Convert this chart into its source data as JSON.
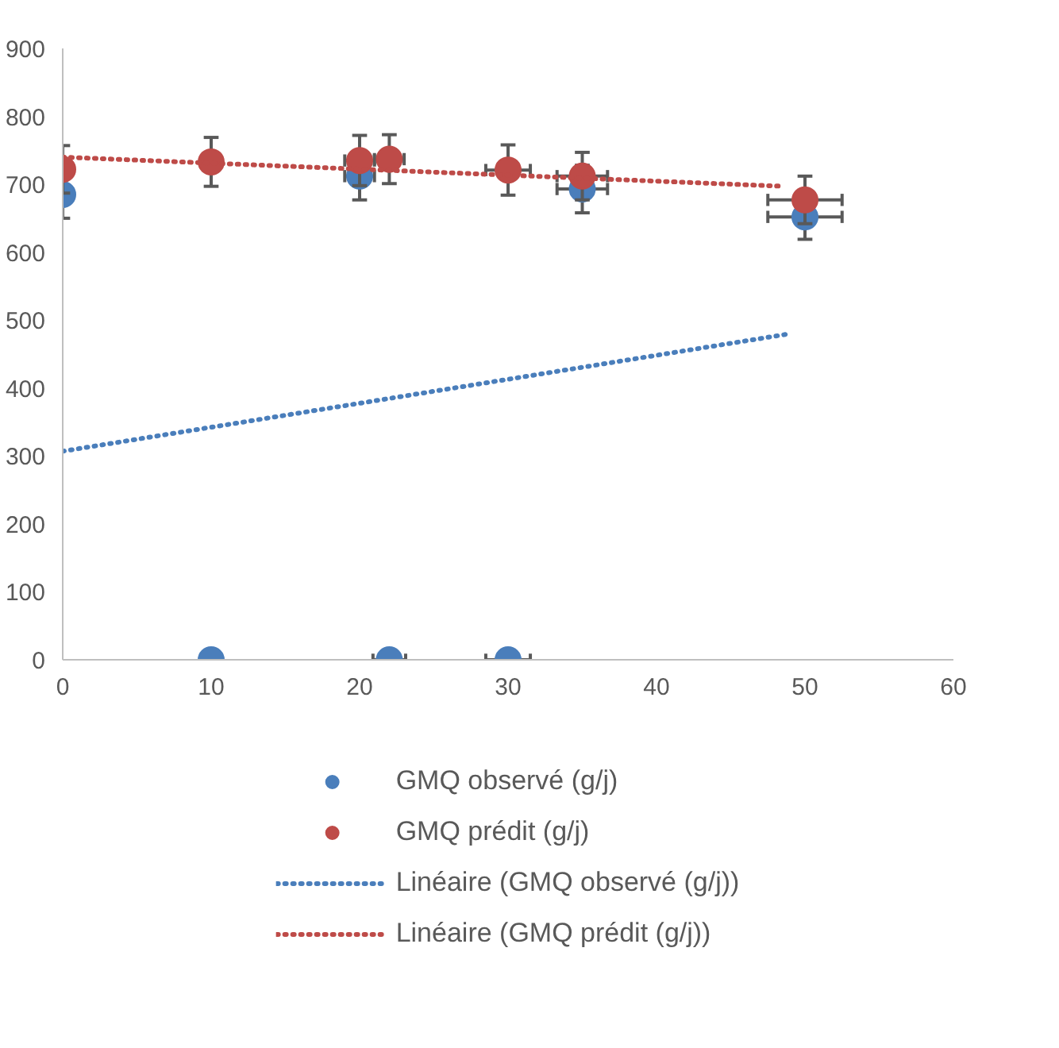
{
  "chart_data": {
    "type": "scatter",
    "xlim": [
      0,
      60
    ],
    "xticks": [
      0,
      10,
      20,
      30,
      40,
      50,
      60
    ],
    "ylim": [
      0,
      900
    ],
    "yticks": [
      0,
      100,
      200,
      300,
      400,
      500,
      600,
      700,
      800,
      900
    ],
    "grid": false,
    "legend": "bottom",
    "marker": "circle",
    "series": [
      {
        "name": "GMQ observé (g/j)",
        "color": "#4a7ebb",
        "x": [
          0,
          10,
          20,
          22,
          30,
          35,
          50
        ],
        "values": [
          685,
          0,
          712,
          0,
          0,
          693,
          652
        ],
        "errors": [
          35,
          null,
          35,
          null,
          null,
          35,
          33
        ],
        "xerrors": [
          null,
          null,
          1,
          1.1,
          1.5,
          1.7,
          2.5
        ]
      },
      {
        "name": "GMQ prédit (g/j)",
        "color": "#be4b48",
        "x": [
          0,
          10,
          20,
          22,
          30,
          35,
          50
        ],
        "values": [
          722,
          733,
          735,
          737,
          721,
          712,
          677
        ],
        "errors": [
          35,
          36,
          37,
          36,
          37,
          35,
          35
        ],
        "xerrors": [
          null,
          null,
          1,
          1,
          1.5,
          1.7,
          2.5
        ]
      },
      {
        "name": "Linéaire (GMQ observé (g/j))",
        "type": "line",
        "line_style": "dotted",
        "marker": "none",
        "color": "#4a7ebb",
        "x": [
          0,
          49
        ],
        "values": [
          307,
          480
        ]
      },
      {
        "name": "Linéaire (GMQ prédit (g/j))",
        "type": "line",
        "line_style": "dotted",
        "marker": "none",
        "color": "#be4b48",
        "x": [
          0,
          48.6
        ],
        "values": [
          740,
          697
        ]
      }
    ]
  }
}
